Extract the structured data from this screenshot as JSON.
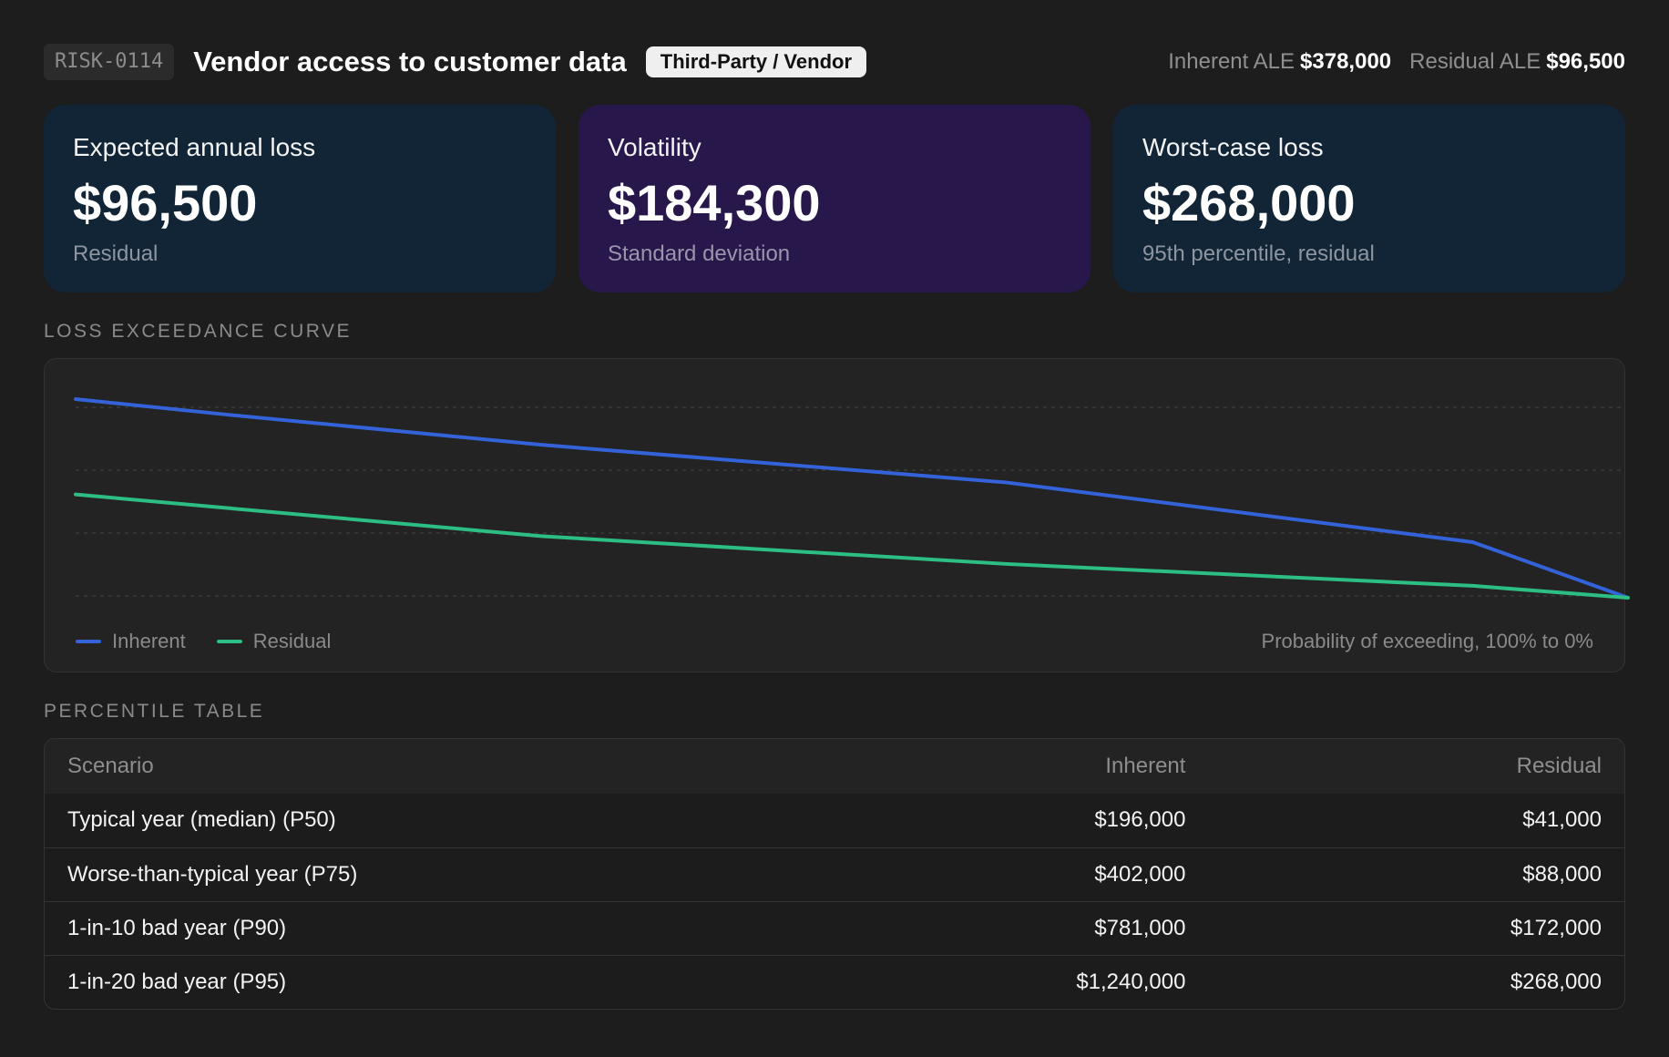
{
  "header": {
    "risk_id": "RISK-0114",
    "title": "Vendor access to customer data",
    "category": "Third-Party / Vendor",
    "inherent_ale_label": "Inherent ALE",
    "inherent_ale_value": "$378,000",
    "residual_ale_label": "Residual ALE",
    "residual_ale_value": "$96,500"
  },
  "cards": [
    {
      "label": "Expected annual loss",
      "value": "$96,500",
      "sub": "Residual"
    },
    {
      "label": "Volatility",
      "value": "$184,300",
      "sub": "Standard deviation"
    },
    {
      "label": "Worst-case loss",
      "value": "$268,000",
      "sub": "95th percentile, residual"
    }
  ],
  "chart_section_label": "Loss Exceedance Curve",
  "chart_note": "Probability of exceeding, 100% to 0%",
  "chart_data": {
    "type": "line",
    "x": [
      100,
      90,
      70,
      40,
      10,
      0
    ],
    "series": [
      {
        "name": "Inherent",
        "color": "#3462d9",
        "values": [
          100,
          92,
          77,
          58,
          28,
          0
        ]
      },
      {
        "name": "Residual",
        "color": "#2cbe83",
        "values": [
          52,
          45,
          31,
          17,
          6,
          0
        ]
      }
    ],
    "grid": true,
    "legend_position": "bottom-left"
  },
  "table_section_label": "Percentile Table",
  "table": {
    "headers": [
      "Scenario",
      "Inherent",
      "Residual"
    ],
    "rows": [
      [
        "Typical year (median) (P50)",
        "$196,000",
        "$41,000"
      ],
      [
        "Worse-than-typical year (P75)",
        "$402,000",
        "$88,000"
      ],
      [
        "1-in-10 bad year (P90)",
        "$781,000",
        "$172,000"
      ],
      [
        "1-in-20 bad year (P95)",
        "$1,240,000",
        "$268,000"
      ]
    ]
  }
}
